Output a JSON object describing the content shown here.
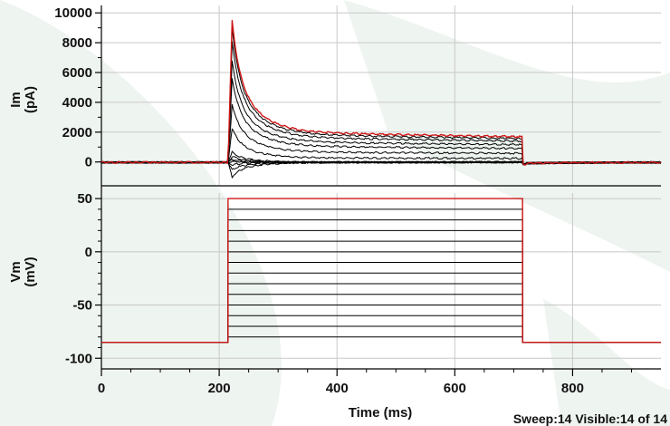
{
  "status": {
    "sweep_text": "Sweep:14 Visible:14 of 14"
  },
  "colors": {
    "background": "#ffffff",
    "watermark": "#eef4f0",
    "grid": "#c8c8c8",
    "axis": "#000000",
    "trace": "#000000",
    "highlight_trace": "#d01818"
  },
  "chart_data": [
    {
      "type": "line",
      "panel": "current",
      "ylabel_line1": "Im",
      "ylabel_line2": "(pA)",
      "xlabel": "",
      "xlim": [
        0,
        950
      ],
      "ylim": [
        -1600,
        10500
      ],
      "yticks": [
        0,
        2000,
        4000,
        6000,
        8000,
        10000
      ],
      "ytick_labels": [
        "0",
        "2000",
        "4000",
        "6000",
        "8000",
        "10000"
      ],
      "grid": true,
      "step_on_ms": 215,
      "step_off_ms": 715,
      "peak_time_ms": 222,
      "series": [
        {
          "peak": -1000,
          "steady": 0,
          "end": 20,
          "color": "#000000"
        },
        {
          "peak": -500,
          "steady": 0,
          "end": 40,
          "color": "#000000"
        },
        {
          "peak": -150,
          "steady": 0,
          "end": 60,
          "color": "#000000"
        },
        {
          "peak": 60,
          "steady": 0,
          "end": 80,
          "color": "#000000"
        },
        {
          "peak": 200,
          "steady": 0,
          "end": 100,
          "color": "#000000"
        },
        {
          "peak": 400,
          "steady": 0,
          "end": 120,
          "color": "#000000"
        },
        {
          "peak": 700,
          "steady": 0,
          "end": 150,
          "color": "#000000"
        },
        {
          "peak": 2300,
          "steady": 300,
          "end": 180,
          "color": "#000000"
        },
        {
          "peak": 3900,
          "steady": 700,
          "end": 250,
          "color": "#000000"
        },
        {
          "peak": 5600,
          "steady": 1100,
          "end": 300,
          "color": "#000000"
        },
        {
          "peak": 6800,
          "steady": 1400,
          "end": 360,
          "color": "#000000"
        },
        {
          "peak": 8100,
          "steady": 1700,
          "end": 400,
          "color": "#000000"
        },
        {
          "peak": 9000,
          "steady": 1900,
          "end": 430,
          "color": "#000000"
        },
        {
          "peak": 9500,
          "steady": 2050,
          "end": 460,
          "color": "#d01818"
        }
      ]
    },
    {
      "type": "line",
      "panel": "voltage",
      "ylabel_line1": "Vm",
      "ylabel_line2": "(mV)",
      "xlabel": "Time (ms)",
      "xlim": [
        0,
        950
      ],
      "ylim": [
        -110,
        62
      ],
      "xticks": [
        0,
        200,
        400,
        600,
        800
      ],
      "xtick_labels": [
        "0",
        "200",
        "400",
        "600",
        "800"
      ],
      "yticks": [
        -100,
        -50,
        0,
        50
      ],
      "ytick_labels": [
        "-100",
        "-50",
        "0",
        "50"
      ],
      "grid": true,
      "holding_mv": -85,
      "step_on_ms": 215,
      "step_off_ms": 715,
      "step_levels_mv": [
        -80,
        -70,
        -60,
        -50,
        -40,
        -30,
        -20,
        -10,
        0,
        10,
        20,
        30,
        40,
        50
      ],
      "step_colors": [
        "#000000",
        "#000000",
        "#000000",
        "#000000",
        "#000000",
        "#000000",
        "#000000",
        "#000000",
        "#000000",
        "#000000",
        "#000000",
        "#000000",
        "#000000",
        "#d01818"
      ]
    }
  ]
}
